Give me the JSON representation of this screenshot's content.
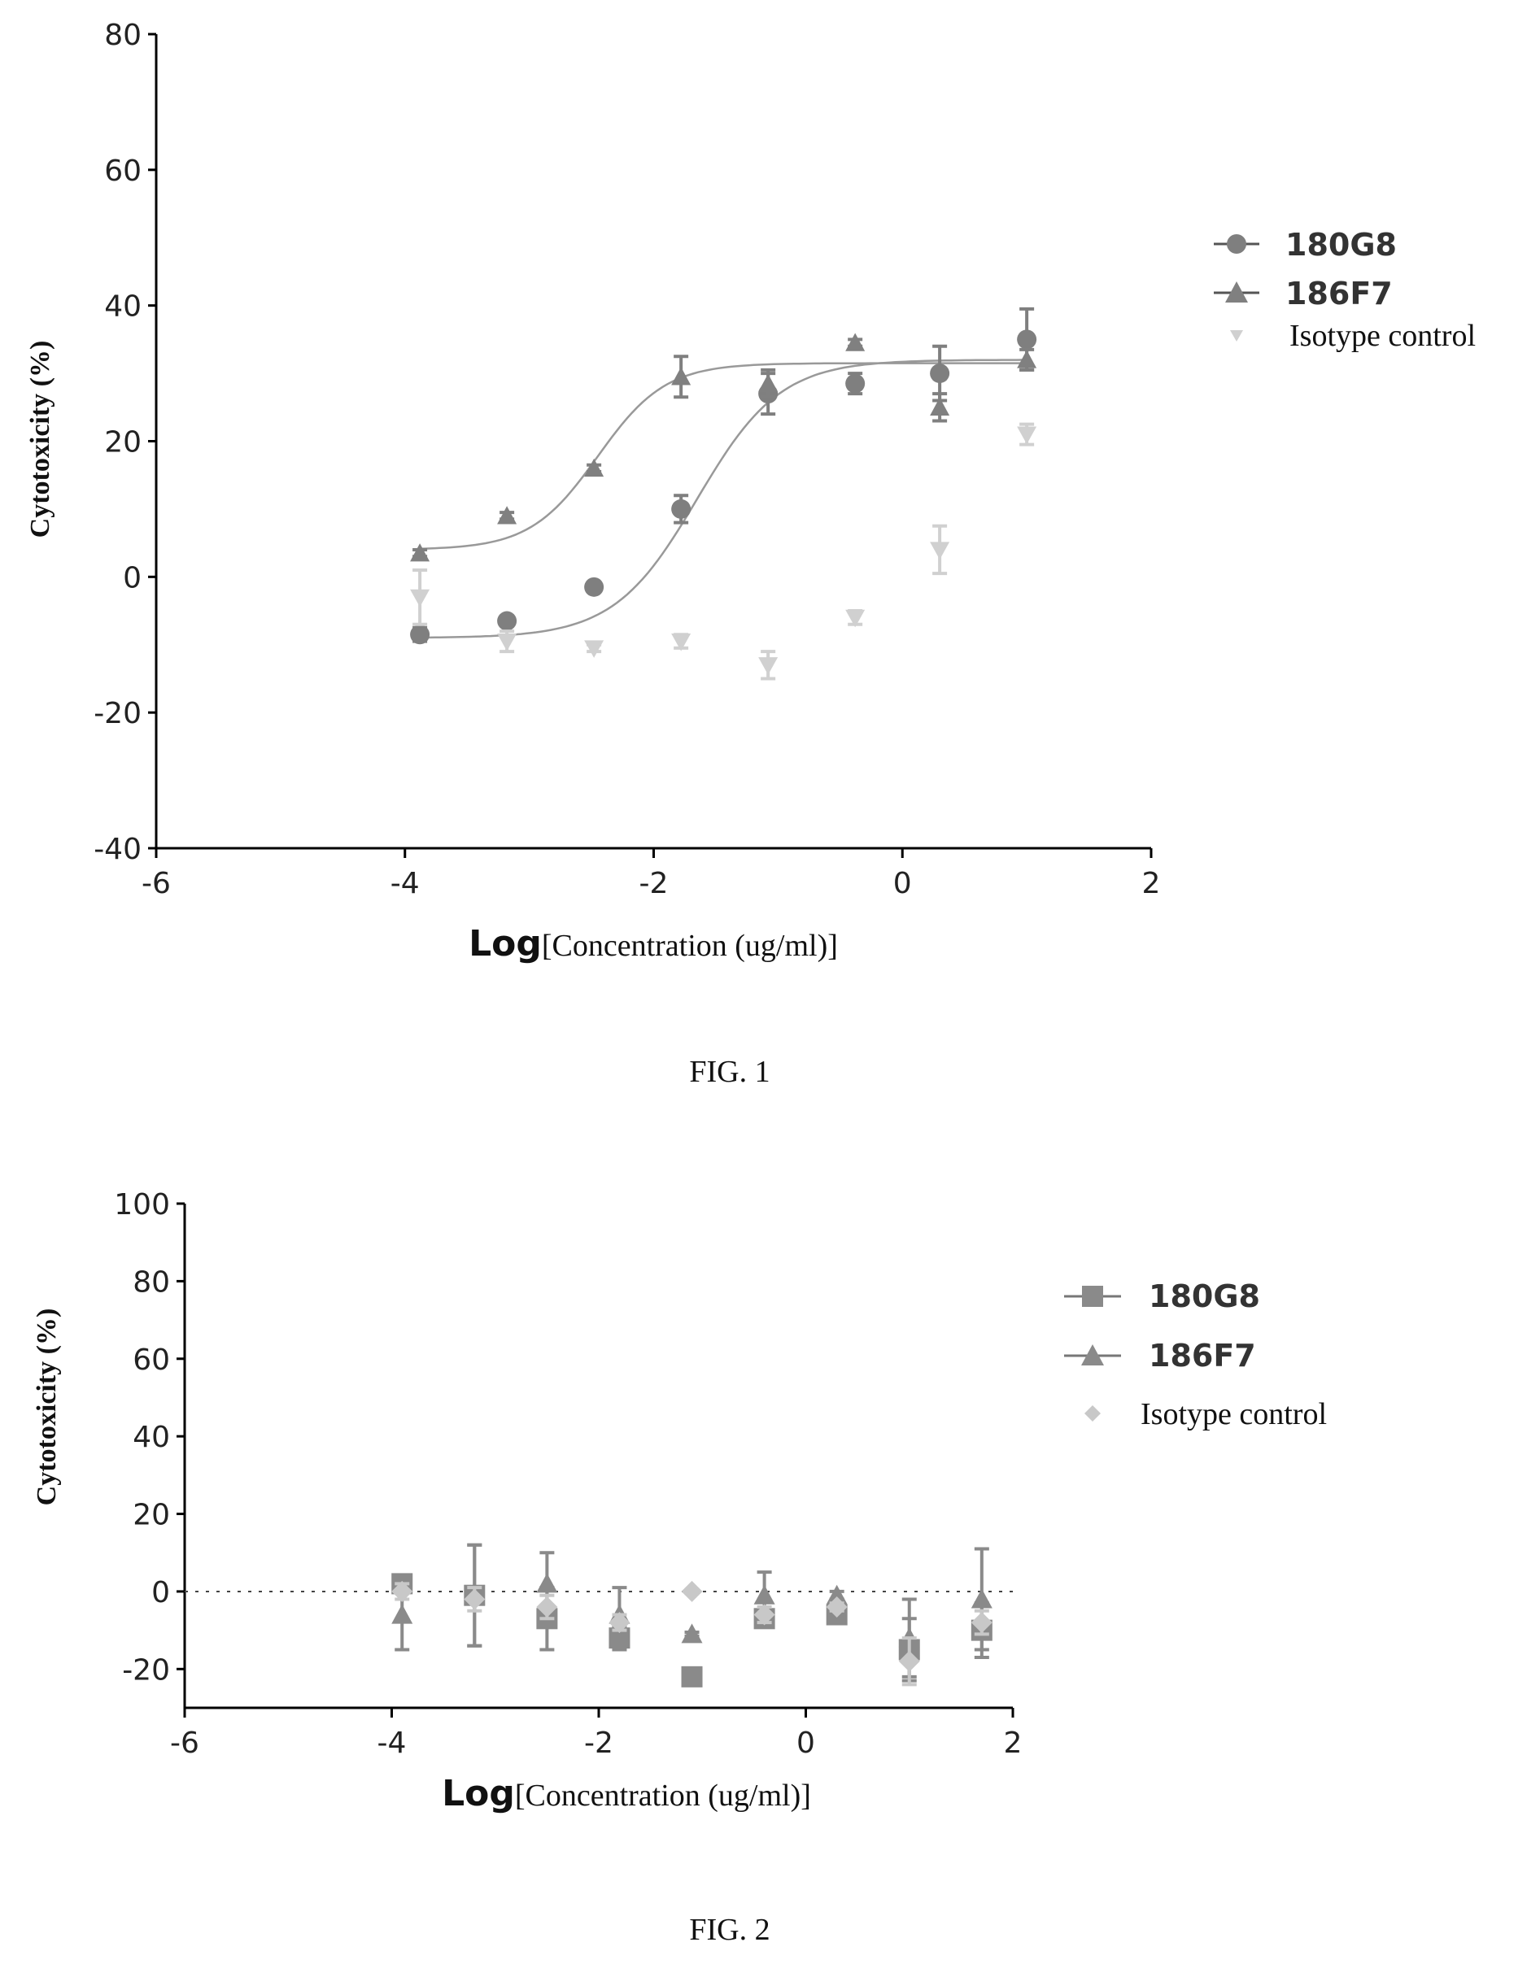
{
  "chart_data": [
    {
      "type": "scatter",
      "figure_label": "FIG. 1",
      "ylabel": "Cytotoxicity (%)",
      "xlabel_prefix": "Log",
      "xlabel_suffix": "[Concentration (ug/ml)]",
      "xlim": [
        -6,
        2
      ],
      "ylim": [
        -40,
        80
      ],
      "xticks": [
        -6,
        -4,
        -2,
        0,
        2
      ],
      "yticks": [
        -40,
        -20,
        0,
        20,
        40,
        60,
        80
      ],
      "legend_position": "right",
      "series": [
        {
          "name": "180G8",
          "marker": "circle",
          "color": "#7f7f7f",
          "fit": true,
          "fit_params": {
            "bottom": -9,
            "top": 32,
            "logec50": -1.65,
            "hill": 1.3
          },
          "x": [
            -3.88,
            -3.18,
            -2.48,
            -1.78,
            -1.08,
            -0.38,
            0.3,
            1.0
          ],
          "y": [
            -8.5,
            -6.5,
            -1.5,
            10,
            27,
            28.5,
            30,
            35
          ],
          "err": [
            1,
            0.5,
            0.5,
            2,
            3,
            1.5,
            4,
            4.5
          ]
        },
        {
          "name": "186F7",
          "marker": "triangle",
          "color": "#808080",
          "fit": true,
          "fit_params": {
            "bottom": 4,
            "top": 31.5,
            "logec50": -2.45,
            "hill": 1.6
          },
          "x": [
            -3.88,
            -3.18,
            -2.48,
            -1.78,
            -1.08,
            -0.38,
            0.3,
            1.0
          ],
          "y": [
            3.5,
            9,
            16,
            29.5,
            28.5,
            34.5,
            25,
            32
          ],
          "err": [
            0.5,
            0.5,
            0.5,
            3,
            2,
            0.5,
            2,
            1.5
          ]
        },
        {
          "name": "Isotype control",
          "marker": "triangle-down",
          "color": "#d0d0d0",
          "fit": false,
          "x": [
            -3.88,
            -3.18,
            -2.48,
            -1.78,
            -1.08,
            -0.38,
            0.3,
            1.0
          ],
          "y": [
            -3,
            -9.5,
            -10.5,
            -9.5,
            -13,
            -6,
            4,
            21
          ],
          "err": [
            4,
            1.5,
            0.5,
            1,
            2,
            1,
            3.5,
            1.5
          ]
        }
      ]
    },
    {
      "type": "scatter",
      "figure_label": "FIG. 2",
      "ylabel": "Cytotoxicity (%)",
      "xlabel_prefix": "Log",
      "xlabel_suffix": "[Concentration (ug/ml)]",
      "xlim": [
        -6,
        2
      ],
      "ylim": [
        -30,
        100
      ],
      "xticks": [
        -6,
        -4,
        -2,
        0,
        2
      ],
      "yticks": [
        -20,
        0,
        20,
        40,
        60,
        80,
        100
      ],
      "reference_line_y": 0,
      "legend_position": "right",
      "series": [
        {
          "name": "180G8",
          "marker": "square",
          "color": "#8a8a8a",
          "x": [
            -3.9,
            -3.2,
            -2.5,
            -1.8,
            -1.1,
            -0.4,
            0.3,
            1.0,
            1.7
          ],
          "y": [
            2,
            -1,
            -7,
            -12,
            -22,
            -7,
            -6,
            -15,
            -10
          ],
          "err": [
            1,
            13,
            8,
            3,
            0.5,
            2,
            1,
            8,
            7
          ]
        },
        {
          "name": "186F7",
          "marker": "triangle",
          "color": "#8a8a8a",
          "x": [
            -3.9,
            -3.2,
            -2.5,
            -1.8,
            -1.1,
            -0.4,
            0.3,
            1.0,
            1.7
          ],
          "y": [
            -6,
            -1,
            2,
            -6,
            -11,
            -1,
            -1,
            -12,
            -2
          ],
          "err": [
            9,
            13,
            8,
            7,
            0.5,
            6,
            1,
            10,
            13
          ]
        },
        {
          "name": "Isotype control",
          "marker": "diamond",
          "color": "#c8c8c8",
          "x": [
            -3.9,
            -3.2,
            -2.5,
            -1.8,
            -1.1,
            -0.4,
            0.3,
            1.0,
            1.7
          ],
          "y": [
            0,
            -2,
            -4,
            -8,
            0,
            -6,
            -4,
            -18,
            -8
          ],
          "err": [
            2,
            3,
            3,
            2,
            0.5,
            2,
            1,
            6,
            3
          ]
        }
      ]
    }
  ]
}
